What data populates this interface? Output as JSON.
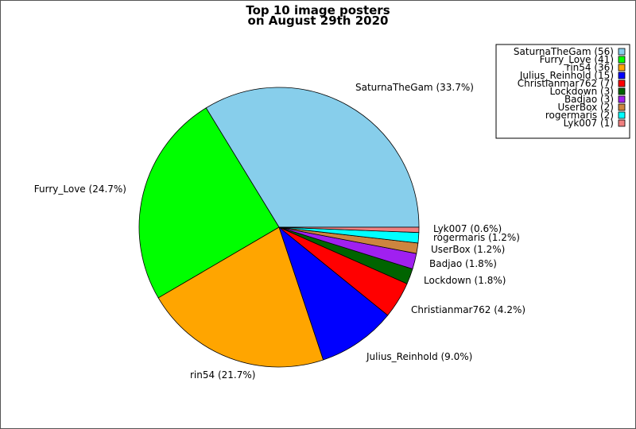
{
  "chart_data": {
    "type": "pie",
    "title": [
      "Top 10 image posters",
      "on August 29th 2020"
    ],
    "slices": [
      {
        "name": "SaturnaTheGam",
        "value": 56,
        "percent_label": "SaturnaTheGam (33.7%)",
        "legend_label": "SaturnaTheGam (56)",
        "color": "#87ceeb"
      },
      {
        "name": "Furry_Love",
        "value": 41,
        "percent_label": "Furry_Love (24.7%)",
        "legend_label": "Furry_Love (41)",
        "color": "#00ff00"
      },
      {
        "name": "rin54",
        "value": 36,
        "percent_label": "rin54 (21.7%)",
        "legend_label": "rin54 (36)",
        "color": "#ffa500"
      },
      {
        "name": "Julius_Reinhold",
        "value": 15,
        "percent_label": "Julius_Reinhold (9.0%)",
        "legend_label": "Julius_Reinhold (15)",
        "color": "#0000ff"
      },
      {
        "name": "Christianmar762",
        "value": 7,
        "percent_label": "Christianmar762 (4.2%)",
        "legend_label": "Christianmar762 (7)",
        "color": "#ff0000"
      },
      {
        "name": "Lockdown",
        "value": 3,
        "percent_label": "Lockdown (1.8%)",
        "legend_label": "Lockdown (3)",
        "color": "#006400"
      },
      {
        "name": "Badjao",
        "value": 3,
        "percent_label": "Badjao (1.8%)",
        "legend_label": "Badjao (3)",
        "color": "#a020f0"
      },
      {
        "name": "UserBox",
        "value": 2,
        "percent_label": "UserBox (1.2%)",
        "legend_label": "UserBox (2)",
        "color": "#cd853f"
      },
      {
        "name": "rogermaris",
        "value": 2,
        "percent_label": "rogermaris (1.2%)",
        "legend_label": "rogermaris (2)",
        "color": "#00ffff"
      },
      {
        "name": "Lyk007",
        "value": 1,
        "percent_label": "Lyk007 (0.6%)",
        "legend_label": "Lyk007 (1)",
        "color": "#f08080"
      }
    ],
    "start_angle": "3 o'clock",
    "direction": "counterclockwise",
    "legend_placement": "top-right"
  }
}
